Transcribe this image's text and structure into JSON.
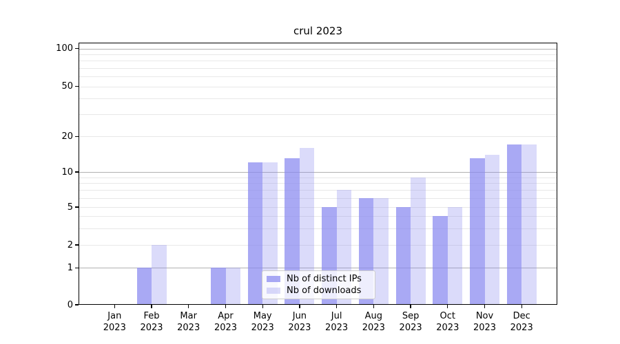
{
  "title": "crul 2023",
  "chart_data": {
    "type": "bar",
    "categories": [
      "Jan",
      "Feb",
      "Mar",
      "Apr",
      "May",
      "Jun",
      "Jul",
      "Aug",
      "Sep",
      "Oct",
      "Nov",
      "Dec"
    ],
    "category_year": "2023",
    "series": [
      {
        "name": "Nb of distinct IPs",
        "color": "rgba(136,136,240,0.72)",
        "values": [
          0,
          1,
          0,
          1,
          12,
          13,
          5,
          6,
          5,
          4,
          13,
          17
        ]
      },
      {
        "name": "Nb of downloads",
        "color": "rgba(136,136,240,0.30)",
        "values": [
          0,
          2,
          0,
          1,
          12,
          16,
          7,
          6,
          9,
          5,
          14,
          17
        ]
      }
    ],
    "title": "crul 2023",
    "xlabel": "",
    "ylabel": "",
    "ylim": [
      0,
      100
    ],
    "yscale": "symlog",
    "yticks": [
      0,
      1,
      2,
      5,
      10,
      20,
      50,
      100
    ],
    "major_gridline_values": [
      1,
      10,
      100
    ],
    "minor_gridline_values": [
      2,
      3,
      4,
      5,
      6,
      7,
      8,
      9,
      20,
      30,
      40,
      50,
      60,
      70,
      80,
      90
    ],
    "grid": true,
    "legend_position": "lower center",
    "colors": {
      "bar_base": "#8888f0",
      "grid_major": "#b0b0b0",
      "grid_minor": "#e8e8e8"
    }
  }
}
